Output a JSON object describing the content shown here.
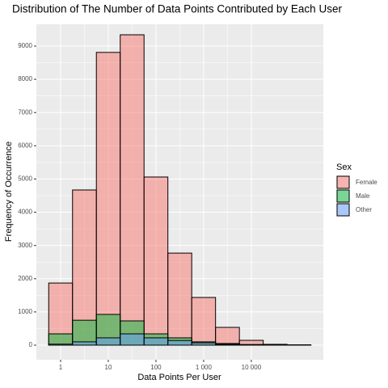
{
  "chart_data": {
    "type": "histogram",
    "title": "Distribution of The Number of Data Points Contributed by Each User",
    "x_label": "Data Points Per User",
    "y_label": "Frequency of Occurrence",
    "legend_title": "Sex",
    "legend_position": "right",
    "x_log": true,
    "grid": true,
    "bins": [
      0.562,
      1.778,
      5.623,
      17.78,
      56.23,
      177.8,
      562.3,
      1778,
      5623,
      17783,
      56234,
      177828
    ],
    "series": [
      {
        "name": "Female",
        "color": "#F8766D",
        "values": [
          1870,
          4670,
          8810,
          9340,
          5060,
          2770,
          1435,
          535,
          145,
          25,
          10
        ]
      },
      {
        "name": "Male",
        "color": "#00BA38",
        "values": [
          340,
          750,
          925,
          730,
          340,
          220,
          100,
          50,
          20,
          5,
          2
        ]
      },
      {
        "name": "Other",
        "color": "#619CFF",
        "values": [
          30,
          100,
          220,
          340,
          220,
          140,
          70,
          25,
          5,
          2,
          1
        ]
      }
    ],
    "xlim": [
      0.31,
      324000
    ],
    "xticks": [
      1,
      10,
      100,
      {
        "value": 1000,
        "label": "1 000"
      },
      {
        "value": 10000,
        "label": "10 000"
      }
    ],
    "ylim": [
      -438,
      9657
    ],
    "yticks": [
      0,
      1000,
      2000,
      3000,
      4000,
      5000,
      6000,
      7000,
      8000,
      9000
    ]
  }
}
